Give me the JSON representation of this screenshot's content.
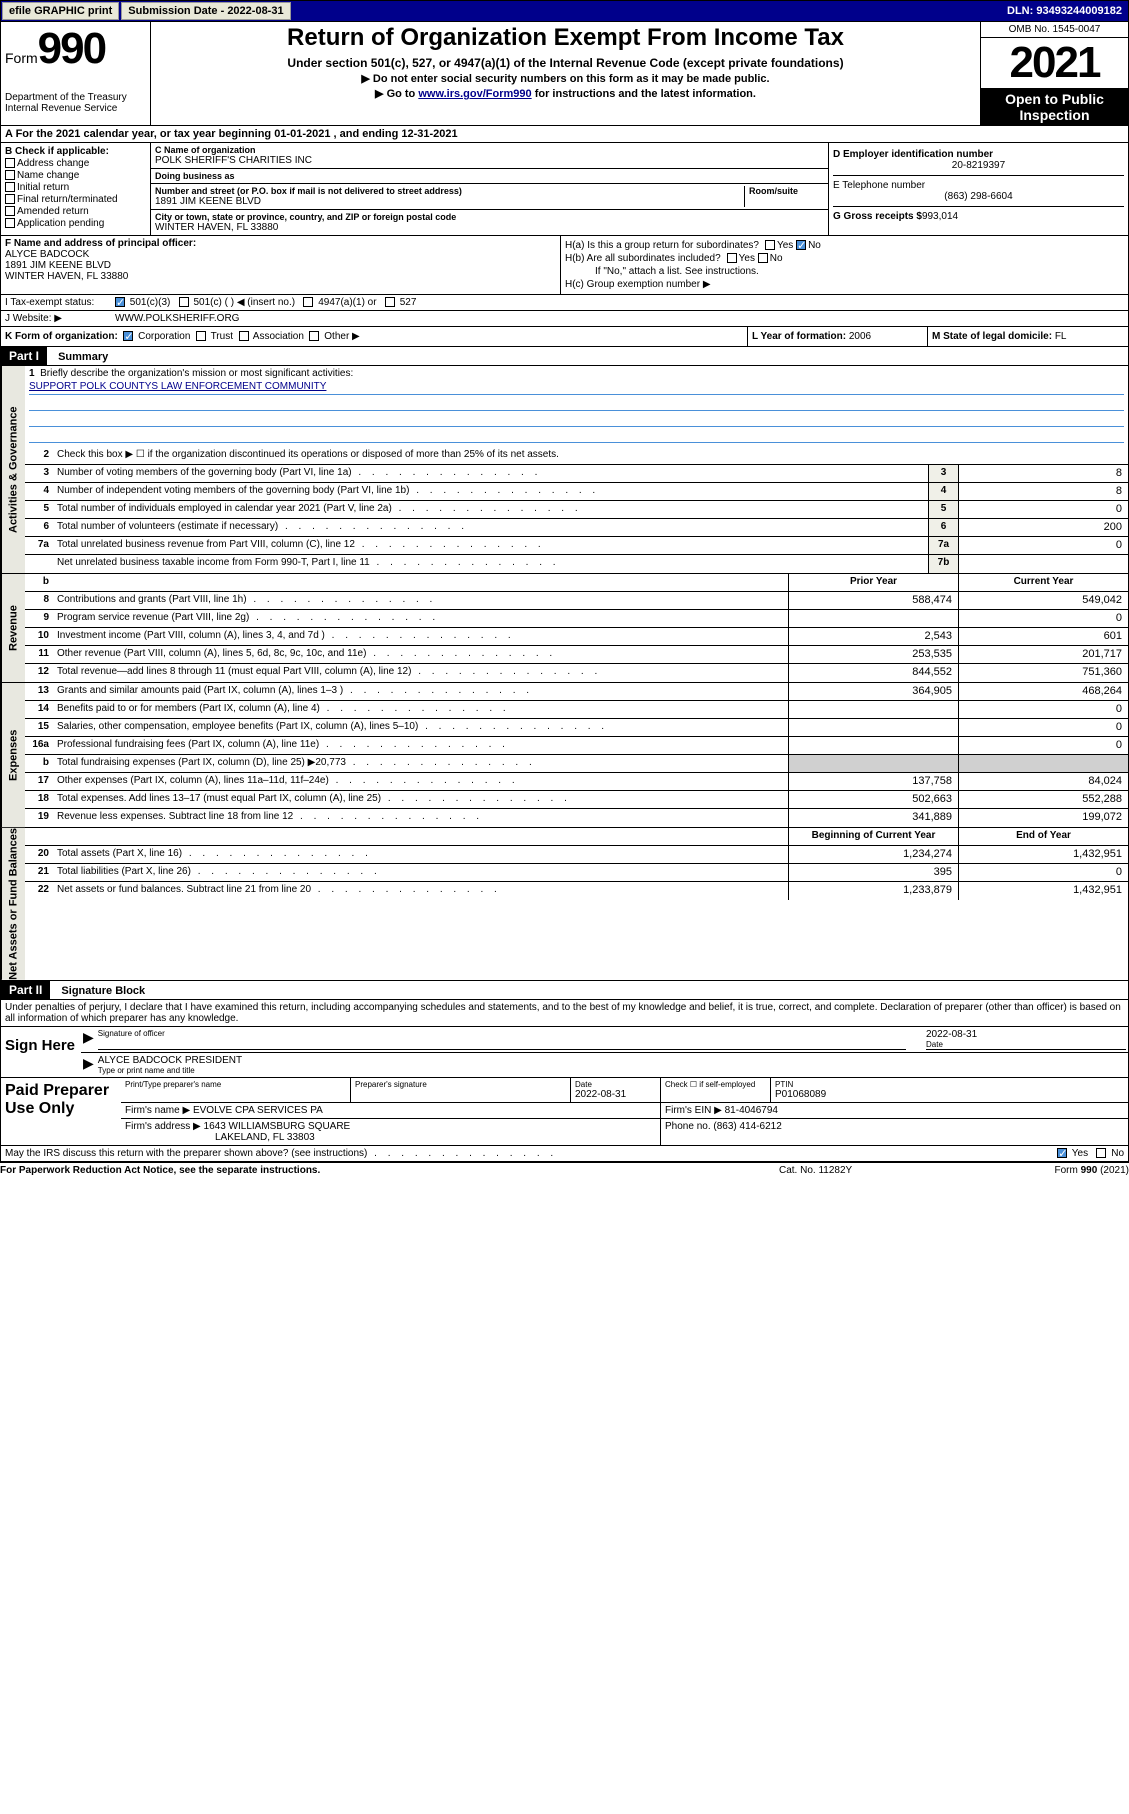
{
  "topbar": {
    "efile": "efile GRAPHIC print",
    "sub_label": "Submission Date - 2022-08-31",
    "dln": "DLN: 93493244009182"
  },
  "header": {
    "form_word": "Form",
    "form_num": "990",
    "dept": "Department of the Treasury\nInternal Revenue Service",
    "title": "Return of Organization Exempt From Income Tax",
    "sub1": "Under section 501(c), 527, or 4947(a)(1) of the Internal Revenue Code (except private foundations)",
    "sub2": "▶ Do not enter social security numbers on this form as it may be made public.",
    "sub3_pre": "▶ Go to ",
    "sub3_link": "www.irs.gov/Form990",
    "sub3_post": " for instructions and the latest information.",
    "omb": "OMB No. 1545-0047",
    "year": "2021",
    "open": "Open to Public Inspection"
  },
  "rowA": "A For the 2021 calendar year, or tax year beginning 01-01-2021   , and ending 12-31-2021",
  "boxB": {
    "label": "B Check if applicable:",
    "items": [
      "Address change",
      "Name change",
      "Initial return",
      "Final return/terminated",
      "Amended return",
      "Application pending"
    ]
  },
  "boxC": {
    "name_lbl": "C Name of organization",
    "name": "POLK SHERIFF'S CHARITIES INC",
    "dba_lbl": "Doing business as",
    "dba": "",
    "street_lbl": "Number and street (or P.O. box if mail is not delivered to street address)",
    "room_lbl": "Room/suite",
    "street": "1891 JIM KEENE BLVD",
    "city_lbl": "City or town, state or province, country, and ZIP or foreign postal code",
    "city": "WINTER HAVEN, FL  33880"
  },
  "boxD": {
    "ein_lbl": "D Employer identification number",
    "ein": "20-8219397",
    "tel_lbl": "E Telephone number",
    "tel": "(863) 298-6604",
    "gross_lbl": "G Gross receipts $",
    "gross": "993,014"
  },
  "boxF": {
    "lbl": "F Name and address of principal officer:",
    "name": "ALYCE BADCOCK",
    "addr1": "1891 JIM KEENE BLVD",
    "addr2": "WINTER HAVEN, FL  33880"
  },
  "boxH": {
    "a": "H(a)  Is this a group return for subordinates?",
    "b": "H(b)  Are all subordinates included?",
    "b_note": "If \"No,\" attach a list. See instructions.",
    "c": "H(c)  Group exemption number ▶"
  },
  "rowI": {
    "lbl": "I    Tax-exempt status:",
    "opts": [
      "501(c)(3)",
      "501(c) (  ) ◀ (insert no.)",
      "4947(a)(1) or",
      "527"
    ]
  },
  "rowJ": {
    "lbl": "J    Website: ▶",
    "val": "WWW.POLKSHERIFF.ORG"
  },
  "rowK": {
    "lbl": "K Form of organization:",
    "opts": [
      "Corporation",
      "Trust",
      "Association",
      "Other ▶"
    ]
  },
  "rowL": {
    "lbl": "L Year of formation:",
    "val": "2006"
  },
  "rowM": {
    "lbl": "M State of legal domicile:",
    "val": "FL"
  },
  "part1": {
    "hdr": "Part I",
    "title": "Summary"
  },
  "summary": {
    "line1": "Briefly describe the organization's mission or most significant activities:",
    "mission": "SUPPORT POLK COUNTYS LAW ENFORCEMENT COMMUNITY",
    "line2": "Check this box ▶ ☐  if the organization discontinued its operations or disposed of more than 25% of its net assets.",
    "rows_gov": [
      {
        "n": "3",
        "d": "Number of voting members of the governing body (Part VI, line 1a)",
        "b": "3",
        "v": "8"
      },
      {
        "n": "4",
        "d": "Number of independent voting members of the governing body (Part VI, line 1b)",
        "b": "4",
        "v": "8"
      },
      {
        "n": "5",
        "d": "Total number of individuals employed in calendar year 2021 (Part V, line 2a)",
        "b": "5",
        "v": "0"
      },
      {
        "n": "6",
        "d": "Total number of volunteers (estimate if necessary)",
        "b": "6",
        "v": "200"
      },
      {
        "n": "7a",
        "d": "Total unrelated business revenue from Part VIII, column (C), line 12",
        "b": "7a",
        "v": "0"
      },
      {
        "n": "",
        "d": "Net unrelated business taxable income from Form 990-T, Part I, line 11",
        "b": "7b",
        "v": ""
      }
    ],
    "col_h1": "Prior Year",
    "col_h2": "Current Year",
    "rows_rev": [
      {
        "n": "8",
        "d": "Contributions and grants (Part VIII, line 1h)",
        "p": "588,474",
        "c": "549,042"
      },
      {
        "n": "9",
        "d": "Program service revenue (Part VIII, line 2g)",
        "p": "",
        "c": "0"
      },
      {
        "n": "10",
        "d": "Investment income (Part VIII, column (A), lines 3, 4, and 7d )",
        "p": "2,543",
        "c": "601"
      },
      {
        "n": "11",
        "d": "Other revenue (Part VIII, column (A), lines 5, 6d, 8c, 9c, 10c, and 11e)",
        "p": "253,535",
        "c": "201,717"
      },
      {
        "n": "12",
        "d": "Total revenue—add lines 8 through 11 (must equal Part VIII, column (A), line 12)",
        "p": "844,552",
        "c": "751,360"
      }
    ],
    "rows_exp": [
      {
        "n": "13",
        "d": "Grants and similar amounts paid (Part IX, column (A), lines 1–3 )",
        "p": "364,905",
        "c": "468,264"
      },
      {
        "n": "14",
        "d": "Benefits paid to or for members (Part IX, column (A), line 4)",
        "p": "",
        "c": "0"
      },
      {
        "n": "15",
        "d": "Salaries, other compensation, employee benefits (Part IX, column (A), lines 5–10)",
        "p": "",
        "c": "0"
      },
      {
        "n": "16a",
        "d": "Professional fundraising fees (Part IX, column (A), line 11e)",
        "p": "",
        "c": "0"
      },
      {
        "n": "b",
        "d": "Total fundraising expenses (Part IX, column (D), line 25) ▶20,773",
        "p": "shade",
        "c": "shade"
      },
      {
        "n": "17",
        "d": "Other expenses (Part IX, column (A), lines 11a–11d, 11f–24e)",
        "p": "137,758",
        "c": "84,024"
      },
      {
        "n": "18",
        "d": "Total expenses. Add lines 13–17 (must equal Part IX, column (A), line 25)",
        "p": "502,663",
        "c": "552,288"
      },
      {
        "n": "19",
        "d": "Revenue less expenses. Subtract line 18 from line 12",
        "p": "341,889",
        "c": "199,072"
      }
    ],
    "col_h3": "Beginning of Current Year",
    "col_h4": "End of Year",
    "rows_net": [
      {
        "n": "20",
        "d": "Total assets (Part X, line 16)",
        "p": "1,234,274",
        "c": "1,432,951"
      },
      {
        "n": "21",
        "d": "Total liabilities (Part X, line 26)",
        "p": "395",
        "c": "0"
      },
      {
        "n": "22",
        "d": "Net assets or fund balances. Subtract line 21 from line 20",
        "p": "1,233,879",
        "c": "1,432,951"
      }
    ]
  },
  "vtabs": {
    "gov": "Activities & Governance",
    "rev": "Revenue",
    "exp": "Expenses",
    "net": "Net Assets or Fund Balances"
  },
  "part2": {
    "hdr": "Part II",
    "title": "Signature Block"
  },
  "sig": {
    "decl": "Under penalties of perjury, I declare that I have examined this return, including accompanying schedules and statements, and to the best of my knowledge and belief, it is true, correct, and complete. Declaration of preparer (other than officer) is based on all information of which preparer has any knowledge.",
    "here": "Sign Here",
    "off_lbl": "Signature of officer",
    "date_lbl": "Date",
    "date": "2022-08-31",
    "name": "ALYCE BADCOCK  PRESIDENT",
    "name_lbl": "Type or print name and title"
  },
  "prep": {
    "lbl": "Paid Preparer Use Only",
    "name_lbl": "Print/Type preparer's name",
    "sig_lbl": "Preparer's signature",
    "date_lbl": "Date",
    "date": "2022-08-31",
    "self_lbl": "Check ☐ if self-employed",
    "ptin_lbl": "PTIN",
    "ptin": "P01068089",
    "firm_lbl": "Firm's name    ▶",
    "firm": "EVOLVE CPA SERVICES PA",
    "ein_lbl": "Firm's EIN ▶",
    "ein": "81-4046794",
    "addr_lbl": "Firm's address ▶",
    "addr1": "1643 WILLIAMSBURG SQUARE",
    "addr2": "LAKELAND, FL  33803",
    "phone_lbl": "Phone no.",
    "phone": "(863) 414-6212"
  },
  "may": "May the IRS discuss this return with the preparer shown above? (see instructions)",
  "footer": {
    "f1": "For Paperwork Reduction Act Notice, see the separate instructions.",
    "f2": "Cat. No. 11282Y",
    "f3": "Form 990 (2021)"
  }
}
